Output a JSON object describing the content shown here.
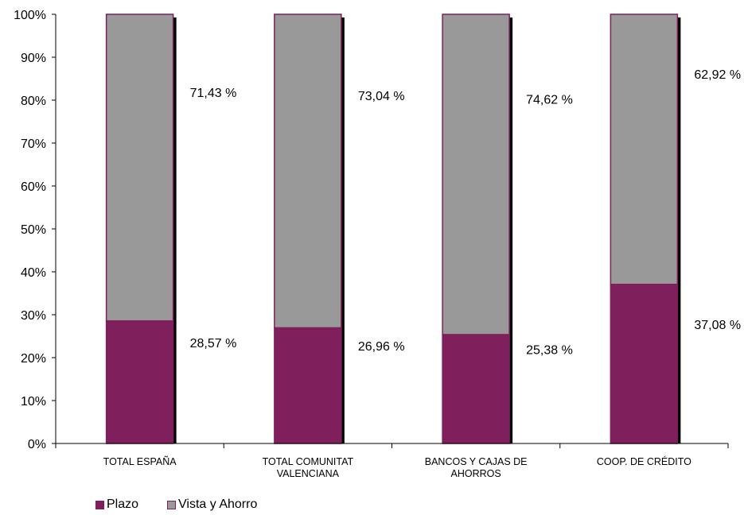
{
  "chart_data": {
    "type": "bar",
    "stacked": true,
    "categories": [
      [
        "TOTAL ESPAÑA"
      ],
      [
        "TOTAL COMUNITAT",
        "VALENCIANA"
      ],
      [
        "BANCOS Y CAJAS DE",
        "AHORROS"
      ],
      [
        "COOP. DE CRÉDITO"
      ]
    ],
    "series": [
      {
        "name": "Plazo",
        "values": [
          28.57,
          26.96,
          25.38,
          37.08
        ],
        "labels": [
          "28,57 %",
          "26,96 %",
          "25,38 %",
          "37,08 %"
        ],
        "color": "#7f1f5c"
      },
      {
        "name": "Vista y Ahorro",
        "values": [
          71.43,
          73.04,
          74.62,
          62.92
        ],
        "labels": [
          "71,43 %",
          "73,04 %",
          "74,62 %",
          "62,92 %"
        ],
        "color": "#999999"
      }
    ],
    "ylim": [
      0,
      100
    ],
    "yticks": [
      "0%",
      "10%",
      "20%",
      "30%",
      "40%",
      "50%",
      "60%",
      "70%",
      "80%",
      "90%",
      "100%"
    ],
    "grid": false,
    "legend_position": "bottom-left",
    "bar_outline_color": "#7f1f5c",
    "bar_shadow_color": "#000000"
  }
}
